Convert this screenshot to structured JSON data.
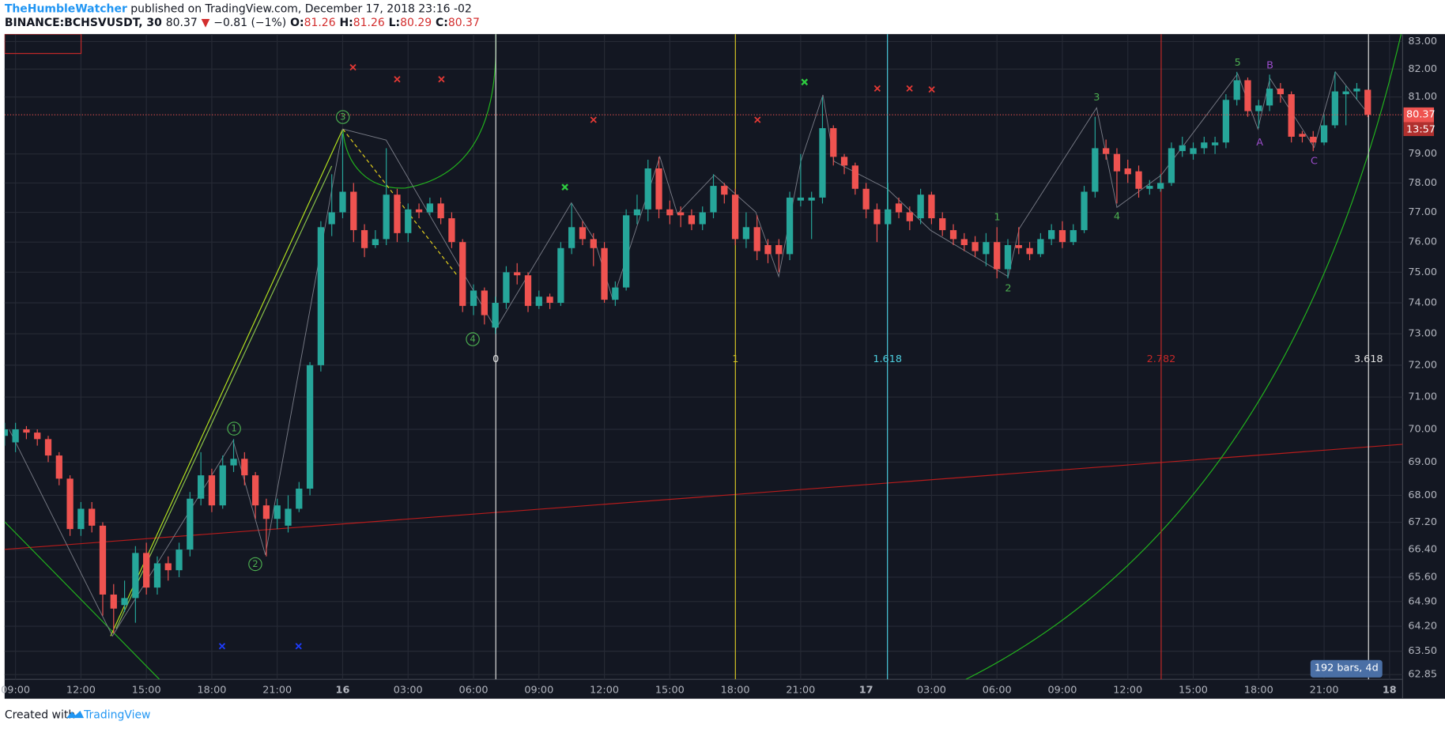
{
  "header": {
    "author": "TheHumbleWatcher",
    "published": "published on TradingView.com, December 17, 2018 23:16 -02",
    "symbol": "BINANCE:BCHSVUSDT, 30",
    "last": "80.37",
    "arrow": "▼",
    "change": "−0.81 (−1%)",
    "open_label": "O:",
    "open": "81.26",
    "high_label": "H:",
    "high": "81.26",
    "low_label": "L:",
    "low": "80.29",
    "close_label": "C:",
    "close": "80.37"
  },
  "chart_data": {
    "type": "candlestick",
    "log_scale": true,
    "grid": true,
    "up_color": "#26a69a",
    "down_color": "#ef5350",
    "xlim": [
      0,
      128.2
    ],
    "ylim": [
      62.72,
      83.27
    ],
    "xticks": [
      {
        "value": 1,
        "label": "09:00"
      },
      {
        "value": 7,
        "label": "12:00"
      },
      {
        "value": 13,
        "label": "15:00"
      },
      {
        "value": 19,
        "label": "18:00"
      },
      {
        "value": 25,
        "label": "21:00"
      },
      {
        "value": 31,
        "label": "16"
      },
      {
        "value": 37,
        "label": "03:00"
      },
      {
        "value": 43,
        "label": "06:00"
      },
      {
        "value": 49,
        "label": "09:00"
      },
      {
        "value": 55,
        "label": "12:00"
      },
      {
        "value": 61,
        "label": "15:00"
      },
      {
        "value": 67,
        "label": "18:00"
      },
      {
        "value": 73,
        "label": "21:00"
      },
      {
        "value": 79,
        "label": "17"
      },
      {
        "value": 85,
        "label": "03:00"
      },
      {
        "value": 91,
        "label": "06:00"
      },
      {
        "value": 97,
        "label": "09:00"
      },
      {
        "value": 103,
        "label": "12:00"
      },
      {
        "value": 109,
        "label": "15:00"
      },
      {
        "value": 115,
        "label": "18:00"
      },
      {
        "value": 121,
        "label": "21:00"
      },
      {
        "value": 127,
        "label": "18"
      }
    ],
    "yticks": [
      {
        "value": 83,
        "label": "83.00"
      },
      {
        "value": 82,
        "label": "82.00"
      },
      {
        "value": 81,
        "label": "81.00"
      },
      {
        "value": 79,
        "label": "79.00"
      },
      {
        "value": 78,
        "label": "78.00"
      },
      {
        "value": 77,
        "label": "77.00"
      },
      {
        "value": 76,
        "label": "76.00"
      },
      {
        "value": 75,
        "label": "75.00"
      },
      {
        "value": 74,
        "label": "74.00"
      },
      {
        "value": 73,
        "label": "73.00"
      },
      {
        "value": 72,
        "label": "72.00"
      },
      {
        "value": 71,
        "label": "71.00"
      },
      {
        "value": 70,
        "label": "70.00"
      },
      {
        "value": 69,
        "label": "69.00"
      },
      {
        "value": 68,
        "label": "68.00"
      },
      {
        "value": 67.2,
        "label": "67.20"
      },
      {
        "value": 66.4,
        "label": "66.40"
      },
      {
        "value": 65.6,
        "label": "65.60"
      },
      {
        "value": 64.9,
        "label": "64.90"
      },
      {
        "value": 64.2,
        "label": "64.20"
      },
      {
        "value": 63.5,
        "label": "63.50"
      },
      {
        "value": 62.85,
        "label": "62.85"
      }
    ],
    "open": [
      69.8,
      69.6,
      70.0,
      69.9,
      69.7,
      69.2,
      68.5,
      67.0,
      67.6,
      67.1,
      65.1,
      64.8,
      65.0,
      66.3,
      65.3,
      66.0,
      65.8,
      66.4,
      67.9,
      68.6,
      67.7,
      68.9,
      69.1,
      68.6,
      67.7,
      67.3,
      67.1,
      67.6,
      68.2,
      72.0,
      76.6,
      77.0,
      77.7,
      76.4,
      75.9,
      76.1,
      77.6,
      76.3,
      77.1,
      77.0,
      77.3,
      76.8,
      76.0,
      73.9,
      74.4,
      73.2,
      74.0,
      75.0,
      74.9,
      73.9,
      74.2,
      74.0,
      75.8,
      76.5,
      76.1,
      75.8,
      74.1,
      74.5,
      76.9,
      77.1,
      78.5,
      77.1,
      77.0,
      76.9,
      76.6,
      77.0,
      77.9,
      77.6,
      76.1,
      76.5,
      75.9,
      75.9,
      75.6,
      77.4,
      77.4,
      77.5,
      79.9,
      78.9,
      78.6,
      77.8,
      77.1,
      76.6,
      77.3,
      77.0,
      76.8,
      77.6,
      76.8,
      76.4,
      76.1,
      76.0,
      75.6,
      76.0,
      75.1,
      75.9,
      75.8,
      75.6,
      76.1,
      76.4,
      76.0,
      76.4,
      77.7,
      79.2,
      79.0,
      78.5,
      78.4,
      77.8,
      77.8,
      78.0,
      79.1,
      79.0,
      79.2,
      79.3,
      79.4,
      80.9,
      81.6,
      80.5,
      80.7,
      81.3,
      81.1,
      79.7,
      79.6,
      79.4,
      80.0,
      81.1,
      81.2,
      81.26
    ],
    "high": [
      70.2,
      70.2,
      70.1,
      70.0,
      69.8,
      69.3,
      68.6,
      67.8,
      67.8,
      67.2,
      65.4,
      65.5,
      66.5,
      66.6,
      66.2,
      66.2,
      66.6,
      68.1,
      69.3,
      68.8,
      69.2,
      69.7,
      69.3,
      68.7,
      67.9,
      67.9,
      68.0,
      68.4,
      72.1,
      76.7,
      78.3,
      79.7,
      78.0,
      76.6,
      76.4,
      79.2,
      77.8,
      77.3,
      77.3,
      77.5,
      77.5,
      77.0,
      76.1,
      74.6,
      74.5,
      74.2,
      75.2,
      75.3,
      75.0,
      74.4,
      74.3,
      76.0,
      77.3,
      76.7,
      76.3,
      76.0,
      74.7,
      77.1,
      77.6,
      78.8,
      78.9,
      77.4,
      77.2,
      77.1,
      77.2,
      78.3,
      78.0,
      77.8,
      77.0,
      76.9,
      76.1,
      76.1,
      77.7,
      79.0,
      77.7,
      81.0,
      80.0,
      79.0,
      78.7,
      78.0,
      77.3,
      78.0,
      77.5,
      77.2,
      77.8,
      77.7,
      77.0,
      76.6,
      76.3,
      76.2,
      76.3,
      76.5,
      76.1,
      76.5,
      76.0,
      76.3,
      76.6,
      76.7,
      76.6,
      77.9,
      80.3,
      79.5,
      79.2,
      78.8,
      78.6,
      78.1,
      78.3,
      79.4,
      79.6,
      79.4,
      79.6,
      79.6,
      81.1,
      81.9,
      81.7,
      80.9,
      81.8,
      81.5,
      81.2,
      79.8,
      79.8,
      80.4,
      81.9,
      81.4,
      81.5,
      81.26
    ],
    "low": [
      69.5,
      69.3,
      69.7,
      69.5,
      69.0,
      68.3,
      66.8,
      66.8,
      66.9,
      64.5,
      64.0,
      64.6,
      64.3,
      65.1,
      65.1,
      65.5,
      65.6,
      66.2,
      67.7,
      67.5,
      67.6,
      68.7,
      68.3,
      67.3,
      66.2,
      67.0,
      66.9,
      67.5,
      68.0,
      71.8,
      76.2,
      76.8,
      76.0,
      75.5,
      75.8,
      75.9,
      76.0,
      76.0,
      76.8,
      76.9,
      76.6,
      75.8,
      73.7,
      73.6,
      73.3,
      73.0,
      73.8,
      74.6,
      73.7,
      73.8,
      73.8,
      73.9,
      75.6,
      75.9,
      75.2,
      74.0,
      73.9,
      74.4,
      76.6,
      76.7,
      76.8,
      76.6,
      76.5,
      76.4,
      76.4,
      76.8,
      77.3,
      75.9,
      75.8,
      75.4,
      75.3,
      75.0,
      75.4,
      77.2,
      76.1,
      77.3,
      78.6,
      78.3,
      77.6,
      76.8,
      76.0,
      76.4,
      76.8,
      76.4,
      76.6,
      76.6,
      76.2,
      75.9,
      75.7,
      75.5,
      75.2,
      74.8,
      74.8,
      75.6,
      75.4,
      75.5,
      75.9,
      75.8,
      75.9,
      76.3,
      77.5,
      78.8,
      77.3,
      78.0,
      77.5,
      77.6,
      77.7,
      77.9,
      78.9,
      78.8,
      79.0,
      79.0,
      79.2,
      80.7,
      80.3,
      79.9,
      80.5,
      80.8,
      79.4,
      79.4,
      79.1,
      79.3,
      79.9,
      80.0,
      80.9,
      80.29
    ],
    "close": [
      70.0,
      70.0,
      69.9,
      69.7,
      69.2,
      68.5,
      67.0,
      67.6,
      67.1,
      65.1,
      64.7,
      65.0,
      66.3,
      65.3,
      66.0,
      65.8,
      66.4,
      67.9,
      68.6,
      67.7,
      68.9,
      69.1,
      68.6,
      67.7,
      67.3,
      67.7,
      67.6,
      68.2,
      72.0,
      76.5,
      77.0,
      77.7,
      76.4,
      75.8,
      76.1,
      77.6,
      76.3,
      77.1,
      77.0,
      77.3,
      76.8,
      76.0,
      73.9,
      74.4,
      73.6,
      74.0,
      75.0,
      74.9,
      73.9,
      74.2,
      74.0,
      75.8,
      76.5,
      76.1,
      75.8,
      74.1,
      74.5,
      76.9,
      77.1,
      78.5,
      77.1,
      76.9,
      76.9,
      76.6,
      77.0,
      77.9,
      77.6,
      76.1,
      76.5,
      75.7,
      75.6,
      75.6,
      77.5,
      77.5,
      77.5,
      79.9,
      78.9,
      78.6,
      77.8,
      77.1,
      76.6,
      77.1,
      77.0,
      76.7,
      77.6,
      76.8,
      76.4,
      76.1,
      75.9,
      75.7,
      76.0,
      75.1,
      75.9,
      75.8,
      75.6,
      76.1,
      76.4,
      76.0,
      76.4,
      77.7,
      79.2,
      79.0,
      78.4,
      78.3,
      77.8,
      77.9,
      78.0,
      79.2,
      79.3,
      79.2,
      79.4,
      79.4,
      80.9,
      81.6,
      80.5,
      80.7,
      81.3,
      81.1,
      79.6,
      79.6,
      79.4,
      80.0,
      81.2,
      81.2,
      81.3,
      80.37
    ],
    "last_price_label": "80.37",
    "countdown": "13:57"
  },
  "annotations": {
    "fib_levels": [
      "0",
      "1",
      "1.618",
      "2.782",
      "3.618"
    ],
    "waves_circled": [
      "1",
      "2",
      "3",
      "4"
    ],
    "waves": [
      "1",
      "2",
      "3",
      "4",
      "5"
    ],
    "correction": [
      "A",
      "B",
      "C"
    ],
    "measure": "192 bars, 4d"
  },
  "footer": {
    "created": "Created with",
    "brand": "TradingView"
  }
}
